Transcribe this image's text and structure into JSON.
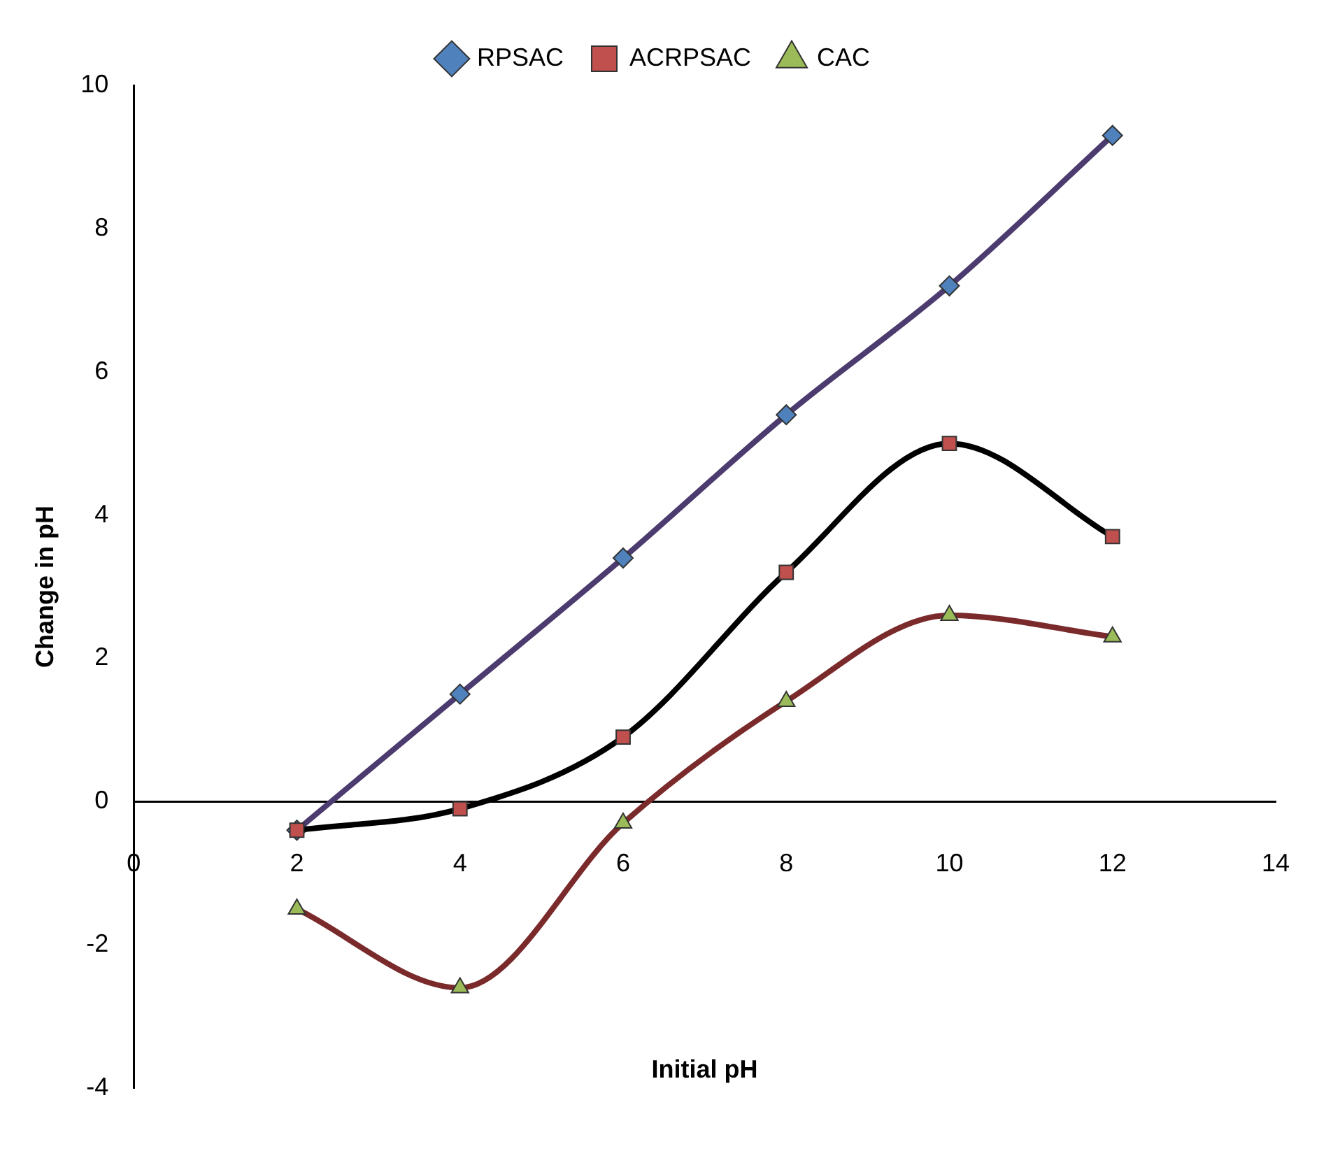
{
  "chart_data": {
    "type": "line",
    "xlabel": "Initial pH",
    "ylabel": "Change in pH",
    "x": [
      2,
      4,
      6,
      8,
      10,
      12
    ],
    "xlim": [
      0,
      14
    ],
    "xticks": [
      0,
      2,
      4,
      6,
      8,
      10,
      12,
      14
    ],
    "ylim": [
      -4,
      10
    ],
    "yticks": [
      -4,
      -2,
      0,
      2,
      4,
      6,
      8,
      10
    ],
    "grid": false,
    "legend": "top",
    "series": [
      {
        "name": "RPSAC",
        "color": "#4b3b6e",
        "colors": [
          "#4f81bd",
          "#4f81bd",
          "#4f81bd",
          "#4f81bd",
          "#4f81bd",
          "#4f81bd"
        ],
        "marker": "diamond",
        "values": [
          -0.4,
          1.5,
          3.4,
          5.4,
          7.2,
          9.3
        ]
      },
      {
        "name": "ACRPSAC",
        "color": "#000000",
        "colors": [
          "#c0504d",
          "#c0504d",
          "#c0504d",
          "#c0504d",
          "#c0504d",
          "#c0504d"
        ],
        "marker": "square",
        "values": [
          -0.4,
          -0.1,
          0.9,
          3.2,
          5.0,
          3.7
        ]
      },
      {
        "name": "CAC",
        "color": "#7a2a2a",
        "colors": [
          "#9bbb59",
          "#9bbb59",
          "#9bbb59",
          "#9bbb59",
          "#9bbb59",
          "#9bbb59"
        ],
        "marker": "triangle",
        "values": [
          -1.5,
          -2.6,
          -0.3,
          1.4,
          2.6,
          2.3
        ]
      }
    ]
  }
}
